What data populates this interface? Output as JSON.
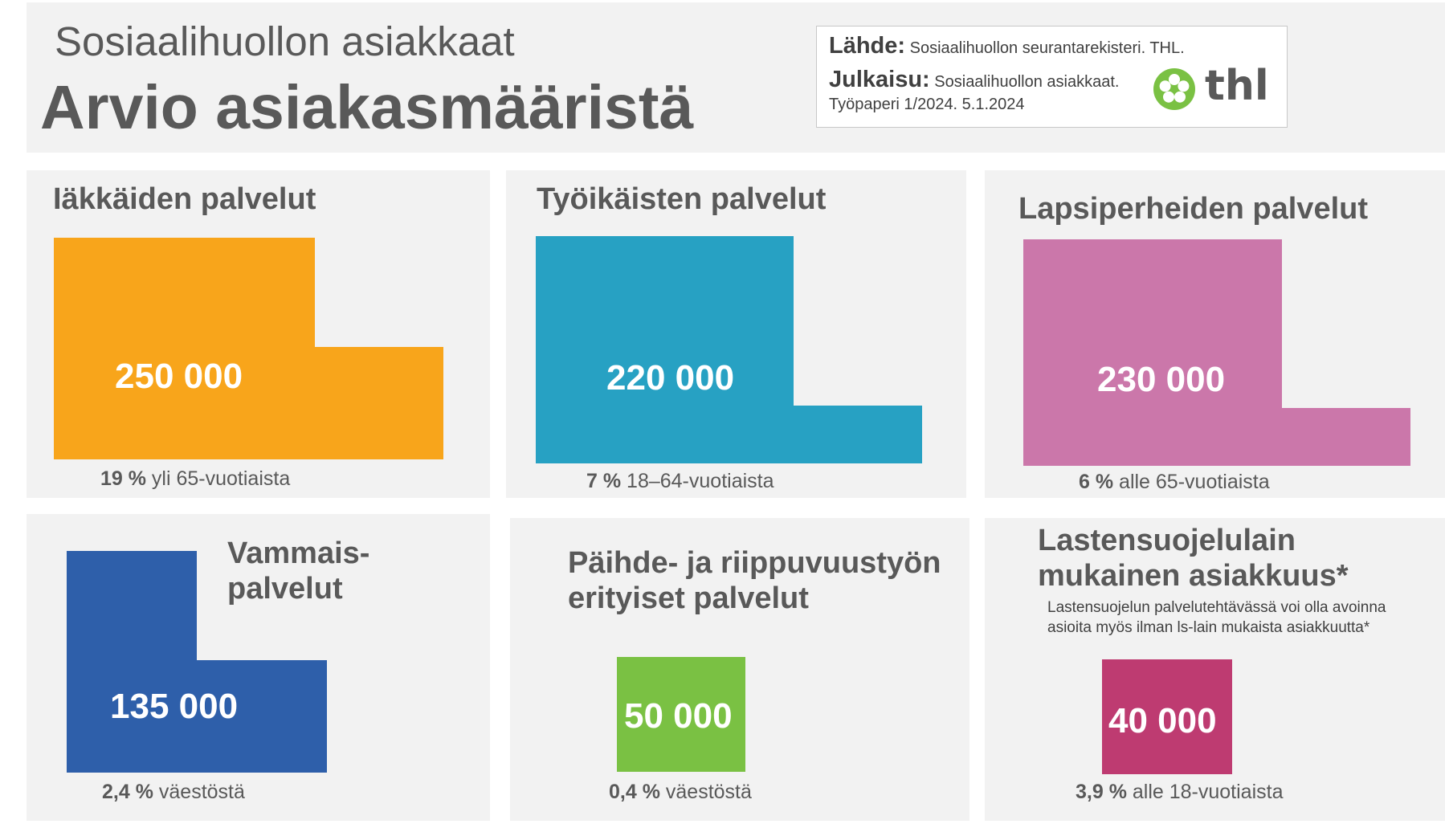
{
  "header": {
    "subtitle": "Sosiaalihuollon asiakkaat",
    "title": "Arvio asiakasmääristä",
    "source_label": "Lähde:",
    "source_text": "Sosiaalihuollon seurantarekisteri. THL.",
    "publication_label": "Julkaisu:",
    "publication_text": "Sosiaalihuollon asiakkaat.",
    "publication_text2": "Työpaperi 1/2024. 5.1.2024",
    "logo_text": "thl"
  },
  "cards": [
    {
      "title": "Iäkkäiden palvelut",
      "value": "250 000",
      "pct_bold": "19 %",
      "pct_text": " yli 65-vuotiaista",
      "color": "#F8A51B"
    },
    {
      "title": "Työikäisten palvelut",
      "value": "220 000",
      "pct_bold": "7 %",
      "pct_text": " 18–64-vuotiaista",
      "color": "#27A1C3"
    },
    {
      "title": "Lapsiperheiden palvelut",
      "value": "230 000",
      "pct_bold": "6 %",
      "pct_text": " alle 65-vuotiaista",
      "color": "#CB77AA"
    },
    {
      "title_line1": "Vammais-",
      "title_line2": "palvelut",
      "value": "135 000",
      "pct_bold": "2,4 %",
      "pct_text": " väestöstä",
      "color": "#2E5FAA"
    },
    {
      "title_line1": "Päihde- ja riippuvuustyön",
      "title_line2": "erityiset palvelut",
      "value": "50 000",
      "pct_bold": "0,4 %",
      "pct_text": " väestöstä",
      "color": "#7AC143"
    },
    {
      "title_line1": "Lastensuojelulain",
      "title_line2": "mukainen asiakkuus*",
      "note_line1": "Lastensuojelun palvelutehtävässä voi olla avoinna",
      "note_line2": "asioita myös ilman ls-lain mukaista asiakkuutta*",
      "value": "40 000",
      "pct_bold": "3,9 %",
      "pct_text": " alle 18-vuotiaista",
      "color": "#BE3B71"
    }
  ]
}
